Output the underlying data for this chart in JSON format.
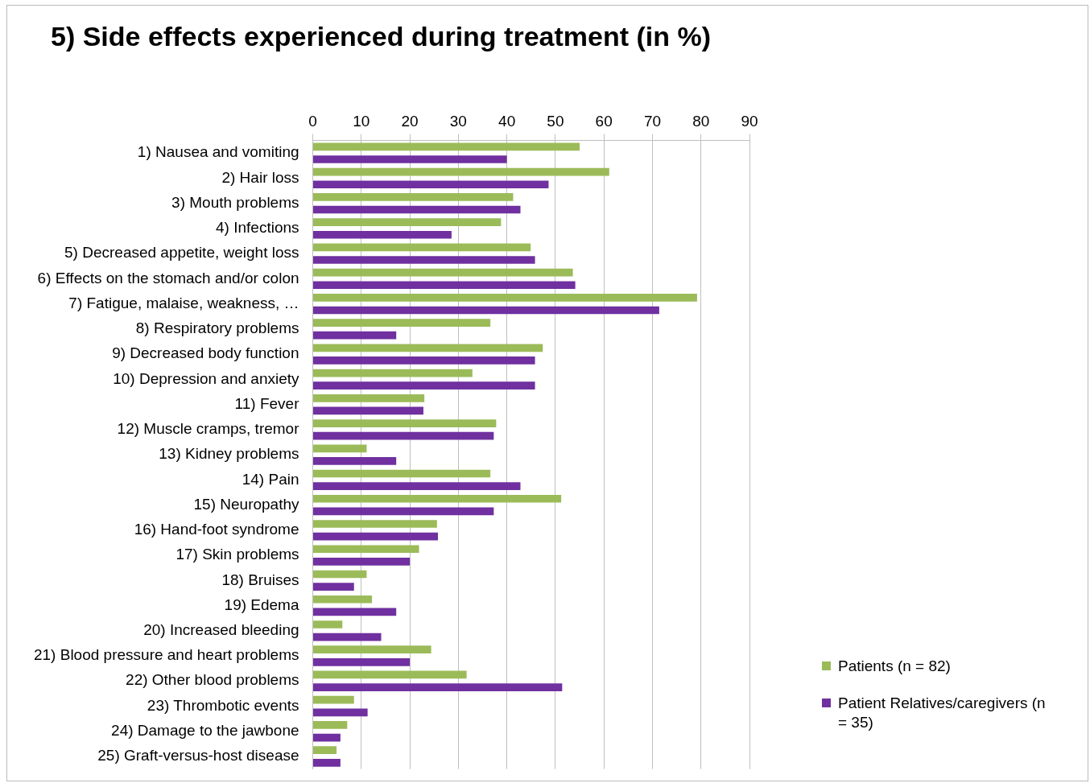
{
  "chart_data": {
    "type": "bar",
    "orientation": "horizontal",
    "title": "5) Side effects experienced during treatment (in %)",
    "categories": [
      "1) Nausea and vomiting",
      "2) Hair loss",
      "3) Mouth problems",
      "4) Infections",
      "5) Decreased appetite, weight loss",
      "6) Effects on the stomach and/or colon",
      "7) Fatigue, malaise, weakness, …",
      "8) Respiratory problems",
      "9) Decreased body function",
      "10) Depression and anxiety",
      "11) Fever",
      "12) Muscle cramps, tremor",
      "13) Kidney problems",
      "14) Pain",
      "15) Neuropathy",
      "16) Hand-foot syndrome",
      "17) Skin problems",
      "18) Bruises",
      "19) Edema",
      "20) Increased bleeding",
      "21) Blood pressure and heart problems",
      "22) Other blood problems",
      "23) Thrombotic events",
      "24) Damage to the jawbone",
      "25) Graft-versus-host disease"
    ],
    "series": [
      {
        "name": "Patients (n = 82)",
        "color": "#9bbb59",
        "values": [
          55.0,
          61.1,
          41.3,
          38.8,
          44.9,
          53.6,
          79.2,
          36.6,
          47.4,
          32.9,
          23.0,
          37.8,
          11.1,
          36.6,
          51.2,
          25.6,
          21.9,
          11.1,
          12.2,
          6.1,
          24.4,
          31.7,
          8.5,
          7.1,
          4.9
        ]
      },
      {
        "name": "Patient Relatives/caregivers (n = 35)",
        "color": "#7030a0",
        "values": [
          40.0,
          48.6,
          42.8,
          28.6,
          45.8,
          54.1,
          71.4,
          17.2,
          45.8,
          45.8,
          22.8,
          37.3,
          17.2,
          42.8,
          37.3,
          25.8,
          20.0,
          8.5,
          17.2,
          14.1,
          20.0,
          51.4,
          11.3,
          5.7,
          5.7
        ]
      }
    ],
    "xlim": [
      0,
      90
    ],
    "xticks": [
      0,
      10,
      20,
      30,
      40,
      50,
      60,
      70,
      80,
      90
    ],
    "grid": "x",
    "legend": "bottom right"
  }
}
